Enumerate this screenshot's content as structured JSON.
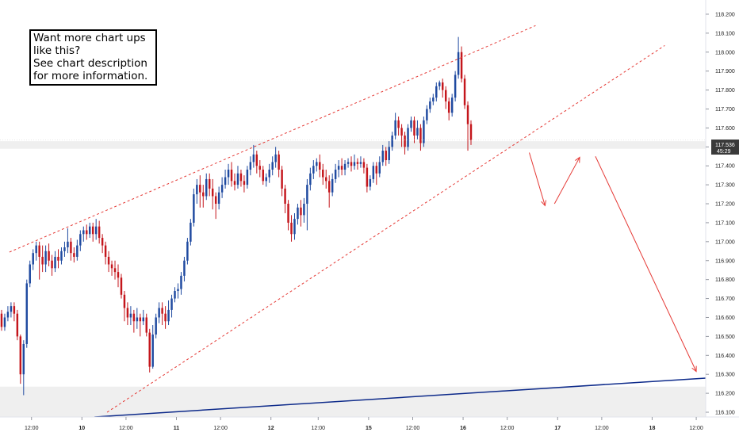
{
  "note": {
    "lines": [
      "Want more chart ups",
      "like this?",
      "See chart description",
      "for more information."
    ]
  },
  "price_label": {
    "price": "117.536",
    "countdown": "45:29"
  },
  "colors": {
    "up": "#1f4aa0",
    "down": "#c4161c",
    "channel": "#e53935",
    "trendline": "#0d2a8a",
    "projection": "#e53935",
    "zone": "#efefef",
    "price_label_bg": "#3a3a3a"
  },
  "chart_data": {
    "type": "candlestick",
    "title": "",
    "y_axis": {
      "side": "right",
      "range": [
        116.075,
        118.275
      ],
      "ticks": [
        "118.200",
        "118.100",
        "118.000",
        "117.900",
        "117.800",
        "117.700",
        "117.600",
        "117.500",
        "117.400",
        "117.300",
        "117.200",
        "117.100",
        "117.000",
        "116.900",
        "116.800",
        "116.700",
        "116.600",
        "116.500",
        "116.400",
        "116.300",
        "116.200",
        "116.100"
      ]
    },
    "x_axis": {
      "range": [
        0,
        224
      ],
      "ticks": [
        {
          "x": 10,
          "label": "12:00"
        },
        {
          "x": 26,
          "label": "10"
        },
        {
          "x": 40,
          "label": "12:00"
        },
        {
          "x": 56,
          "label": "11"
        },
        {
          "x": 70,
          "label": "12:00"
        },
        {
          "x": 86,
          "label": "12"
        },
        {
          "x": 101,
          "label": "12:00"
        },
        {
          "x": 117,
          "label": "15"
        },
        {
          "x": 131,
          "label": "12:00"
        },
        {
          "x": 147,
          "label": "16"
        },
        {
          "x": 161,
          "label": "12:00"
        },
        {
          "x": 177,
          "label": "17"
        },
        {
          "x": 191,
          "label": "12:00"
        },
        {
          "x": 207,
          "label": "18"
        },
        {
          "x": 221,
          "label": "12:00"
        }
      ]
    },
    "candles": [
      [
        116.62,
        116.55,
        116.64,
        116.53
      ],
      [
        116.55,
        116.6,
        116.62,
        116.53
      ],
      [
        116.6,
        116.63,
        116.66,
        116.58
      ],
      [
        116.63,
        116.66,
        116.68,
        116.6
      ],
      [
        116.66,
        116.62,
        116.68,
        116.58
      ],
      [
        116.62,
        116.5,
        116.64,
        116.48
      ],
      [
        116.5,
        116.3,
        116.51,
        116.25
      ],
      [
        116.3,
        116.46,
        116.48,
        116.19
      ],
      [
        116.46,
        116.78,
        116.8,
        116.44
      ],
      [
        116.78,
        116.88,
        116.9,
        116.76
      ],
      [
        116.88,
        116.94,
        116.96,
        116.85
      ],
      [
        116.94,
        116.98,
        117.0,
        116.9
      ],
      [
        116.98,
        116.92,
        117.0,
        116.8
      ],
      [
        116.92,
        116.88,
        116.98,
        116.84
      ],
      [
        116.88,
        116.95,
        116.98,
        116.84
      ],
      [
        116.95,
        116.9,
        116.99,
        116.87
      ],
      [
        116.9,
        116.86,
        116.93,
        116.82
      ],
      [
        116.86,
        116.92,
        116.95,
        116.84
      ],
      [
        116.92,
        116.9,
        116.96,
        116.86
      ],
      [
        116.9,
        116.95,
        116.97,
        116.88
      ],
      [
        116.95,
        116.97,
        117.0,
        116.92
      ],
      [
        116.97,
        117.0,
        117.07,
        116.94
      ],
      [
        117.0,
        116.94,
        117.02,
        116.9
      ],
      [
        116.94,
        116.92,
        116.97,
        116.89
      ],
      [
        116.92,
        116.98,
        117.01,
        116.9
      ],
      [
        116.98,
        117.04,
        117.06,
        116.95
      ],
      [
        117.04,
        117.06,
        117.08,
        117.0
      ],
      [
        117.06,
        117.04,
        117.09,
        117.01
      ],
      [
        117.04,
        117.08,
        117.1,
        117.02
      ],
      [
        117.08,
        117.04,
        117.1,
        117.0
      ],
      [
        117.04,
        117.08,
        117.12,
        117.01
      ],
      [
        117.08,
        117.02,
        117.11,
        116.99
      ],
      [
        117.02,
        116.98,
        117.04,
        116.94
      ],
      [
        116.98,
        116.92,
        117.0,
        116.88
      ],
      [
        116.92,
        116.88,
        116.95,
        116.84
      ],
      [
        116.88,
        116.86,
        116.9,
        116.82
      ],
      [
        116.86,
        116.84,
        116.9,
        116.8
      ],
      [
        116.84,
        116.81,
        116.88,
        116.76
      ],
      [
        116.81,
        116.72,
        116.83,
        116.7
      ],
      [
        116.72,
        116.65,
        116.74,
        116.58
      ],
      [
        116.65,
        116.6,
        116.68,
        116.56
      ],
      [
        116.6,
        116.62,
        116.66,
        116.56
      ],
      [
        116.62,
        116.58,
        116.64,
        116.52
      ],
      [
        116.58,
        116.6,
        116.65,
        116.54
      ],
      [
        116.6,
        116.58,
        116.62,
        116.5
      ],
      [
        116.58,
        116.6,
        116.64,
        116.56
      ],
      [
        116.6,
        116.52,
        116.62,
        116.5
      ],
      [
        116.52,
        116.34,
        116.54,
        116.31
      ],
      [
        116.34,
        116.51,
        116.56,
        116.33
      ],
      [
        116.51,
        116.6,
        116.62,
        116.49
      ],
      [
        116.6,
        116.65,
        116.68,
        116.57
      ],
      [
        116.65,
        116.62,
        116.68,
        116.56
      ],
      [
        116.62,
        116.58,
        116.66,
        116.54
      ],
      [
        116.58,
        116.64,
        116.69,
        116.56
      ],
      [
        116.64,
        116.7,
        116.72,
        116.6
      ],
      [
        116.7,
        116.74,
        116.76,
        116.68
      ],
      [
        116.74,
        116.75,
        116.78,
        116.7
      ],
      [
        116.75,
        116.82,
        116.84,
        116.72
      ],
      [
        116.82,
        116.9,
        116.92,
        116.79
      ],
      [
        116.9,
        117.0,
        117.02,
        116.88
      ],
      [
        117.0,
        117.1,
        117.12,
        116.98
      ],
      [
        117.1,
        117.25,
        117.28,
        117.08
      ],
      [
        117.25,
        117.3,
        117.33,
        117.2
      ],
      [
        117.3,
        117.26,
        117.35,
        117.18
      ],
      [
        117.26,
        117.24,
        117.3,
        117.18
      ],
      [
        117.24,
        117.33,
        117.36,
        117.22
      ],
      [
        117.33,
        117.28,
        117.36,
        117.24
      ],
      [
        117.28,
        117.24,
        117.33,
        117.17
      ],
      [
        117.24,
        117.2,
        117.26,
        117.12
      ],
      [
        117.2,
        117.26,
        117.29,
        117.17
      ],
      [
        117.26,
        117.3,
        117.34,
        117.23
      ],
      [
        117.3,
        117.34,
        117.38,
        117.28
      ],
      [
        117.34,
        117.38,
        117.41,
        117.3
      ],
      [
        117.38,
        117.32,
        117.42,
        117.29
      ],
      [
        117.32,
        117.3,
        117.36,
        117.27
      ],
      [
        117.3,
        117.36,
        117.4,
        117.28
      ],
      [
        117.36,
        117.32,
        117.38,
        117.29
      ],
      [
        117.32,
        117.3,
        117.35,
        117.26
      ],
      [
        117.3,
        117.38,
        117.4,
        117.28
      ],
      [
        117.38,
        117.42,
        117.45,
        117.35
      ],
      [
        117.42,
        117.46,
        117.51,
        117.39
      ],
      [
        117.46,
        117.4,
        117.48,
        117.36
      ],
      [
        117.4,
        117.38,
        117.43,
        117.34
      ],
      [
        117.38,
        117.32,
        117.4,
        117.3
      ],
      [
        117.32,
        117.34,
        117.36,
        117.29
      ],
      [
        117.34,
        117.38,
        117.41,
        117.31
      ],
      [
        117.38,
        117.42,
        117.45,
        117.35
      ],
      [
        117.42,
        117.46,
        117.5,
        117.39
      ],
      [
        117.46,
        117.38,
        117.48,
        117.34
      ],
      [
        117.38,
        117.28,
        117.4,
        117.24
      ],
      [
        117.28,
        117.2,
        117.3,
        117.15
      ],
      [
        117.2,
        117.1,
        117.22,
        117.06
      ],
      [
        117.1,
        117.04,
        117.14,
        117.0
      ],
      [
        117.04,
        117.12,
        117.15,
        117.01
      ],
      [
        117.12,
        117.18,
        117.2,
        117.09
      ],
      [
        117.18,
        117.14,
        117.22,
        117.08
      ],
      [
        117.14,
        117.2,
        117.23,
        117.1
      ],
      [
        117.2,
        117.3,
        117.33,
        117.06
      ],
      [
        117.3,
        117.36,
        117.39,
        117.27
      ],
      [
        117.36,
        117.4,
        117.43,
        117.33
      ],
      [
        117.4,
        117.42,
        117.44,
        117.37
      ],
      [
        117.42,
        117.38,
        117.46,
        117.34
      ],
      [
        117.38,
        117.34,
        117.41,
        117.3
      ],
      [
        117.34,
        117.32,
        117.38,
        117.28
      ],
      [
        117.32,
        117.26,
        117.35,
        117.18
      ],
      [
        117.26,
        117.33,
        117.36,
        117.24
      ],
      [
        117.33,
        117.38,
        117.41,
        117.31
      ],
      [
        117.38,
        117.4,
        117.43,
        117.34
      ],
      [
        117.4,
        117.38,
        117.44,
        117.35
      ],
      [
        117.38,
        117.41,
        117.43,
        117.35
      ],
      [
        117.41,
        117.42,
        117.44,
        117.39
      ],
      [
        117.42,
        117.4,
        117.45,
        117.37
      ],
      [
        117.4,
        117.42,
        117.46,
        117.38
      ],
      [
        117.42,
        117.41,
        117.44,
        117.38
      ],
      [
        117.41,
        117.42,
        117.45,
        117.39
      ],
      [
        117.42,
        117.39,
        117.44,
        117.36
      ],
      [
        117.39,
        117.29,
        117.41,
        117.26
      ],
      [
        117.29,
        117.33,
        117.35,
        117.27
      ],
      [
        117.33,
        117.4,
        117.42,
        117.31
      ],
      [
        117.4,
        117.36,
        117.42,
        117.3
      ],
      [
        117.36,
        117.42,
        117.45,
        117.34
      ],
      [
        117.42,
        117.48,
        117.51,
        117.4
      ],
      [
        117.48,
        117.43,
        117.5,
        117.4
      ],
      [
        117.43,
        117.5,
        117.53,
        117.41
      ],
      [
        117.5,
        117.56,
        117.58,
        117.48
      ],
      [
        117.56,
        117.64,
        117.68,
        117.54
      ],
      [
        117.64,
        117.6,
        117.66,
        117.56
      ],
      [
        117.6,
        117.56,
        117.62,
        117.5
      ],
      [
        117.56,
        117.5,
        117.58,
        117.46
      ],
      [
        117.5,
        117.6,
        117.62,
        117.48
      ],
      [
        117.6,
        117.64,
        117.66,
        117.58
      ],
      [
        117.64,
        117.56,
        117.66,
        117.52
      ],
      [
        117.56,
        117.6,
        117.64,
        117.54
      ],
      [
        117.6,
        117.52,
        117.62,
        117.48
      ],
      [
        117.52,
        117.64,
        117.66,
        117.5
      ],
      [
        117.64,
        117.7,
        117.72,
        117.62
      ],
      [
        117.7,
        117.74,
        117.76,
        117.68
      ],
      [
        117.74,
        117.76,
        117.78,
        117.72
      ],
      [
        117.76,
        117.82,
        117.84,
        117.74
      ],
      [
        117.82,
        117.84,
        117.85,
        117.8
      ],
      [
        117.84,
        117.8,
        117.86,
        117.76
      ],
      [
        117.8,
        117.74,
        117.82,
        117.7
      ],
      [
        117.74,
        117.68,
        117.76,
        117.64
      ],
      [
        117.68,
        117.76,
        117.78,
        117.66
      ],
      [
        117.76,
        117.88,
        117.9,
        117.74
      ],
      [
        117.88,
        118.0,
        118.08,
        117.86
      ],
      [
        118.0,
        117.86,
        118.03,
        117.84
      ],
      [
        117.86,
        117.72,
        117.88,
        117.7
      ],
      [
        117.72,
        117.62,
        117.74,
        117.48
      ],
      [
        117.62,
        117.536,
        117.64,
        117.51
      ]
    ],
    "levels": {
      "resistance_zone": [
        117.49,
        117.53
      ],
      "support_zone": [
        116.075,
        116.235
      ]
    },
    "lines": {
      "channel_upper": {
        "from": [
          3,
          116.945
        ],
        "to": [
          170,
          118.14
        ]
      },
      "channel_lower": {
        "from": [
          34,
          116.1
        ],
        "to": [
          211,
          118.035
        ]
      },
      "trendline": {
        "from": [
          30,
          116.075
        ],
        "to": [
          224,
          116.28
        ]
      },
      "projection": [
        {
          "from": [
            168,
            117.47
          ],
          "to": [
            173,
            117.19
          ]
        },
        {
          "from": [
            176,
            117.2
          ],
          "to": [
            184,
            117.445
          ]
        },
        {
          "from": [
            189,
            117.45
          ],
          "to": [
            221,
            116.315
          ]
        }
      ]
    }
  }
}
